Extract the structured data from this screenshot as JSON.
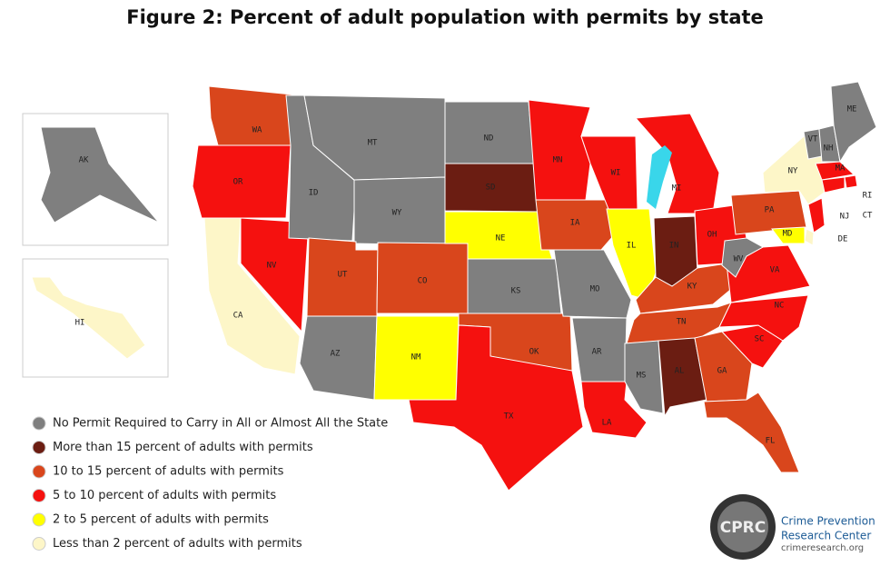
{
  "title": "Figure 2: Percent of adult population with permits by state",
  "legend": [
    {
      "label": "No Permit Required to Carry in All or Almost All the State",
      "color": "#7f7f7f"
    },
    {
      "label": "More than 15 percent of adults with permits",
      "color": "#6b1d12"
    },
    {
      "label": "10 to 15 percent of adults with permits",
      "color": "#d9461c"
    },
    {
      "label": "5 to 10 percent of adults with permits",
      "color": "#f5110f"
    },
    {
      "label": "2 to 5 percent of adults with permits",
      "color": "#ffff00"
    },
    {
      "label": "Less than 2 percent of adults with permits",
      "color": "#fdf6c8"
    }
  ],
  "states": [
    {
      "abbr": "WA",
      "category": 2
    },
    {
      "abbr": "OR",
      "category": 3
    },
    {
      "abbr": "CA",
      "category": 5
    },
    {
      "abbr": "NV",
      "category": 3
    },
    {
      "abbr": "ID",
      "category": 0
    },
    {
      "abbr": "MT",
      "category": 0
    },
    {
      "abbr": "WY",
      "category": 0
    },
    {
      "abbr": "UT",
      "category": 2
    },
    {
      "abbr": "AZ",
      "category": 0
    },
    {
      "abbr": "CO",
      "category": 2
    },
    {
      "abbr": "NM",
      "category": 4
    },
    {
      "abbr": "ND",
      "category": 0
    },
    {
      "abbr": "SD",
      "category": 1
    },
    {
      "abbr": "NE",
      "category": 4
    },
    {
      "abbr": "KS",
      "category": 0
    },
    {
      "abbr": "OK",
      "category": 2
    },
    {
      "abbr": "TX",
      "category": 3
    },
    {
      "abbr": "MN",
      "category": 3
    },
    {
      "abbr": "IA",
      "category": 2
    },
    {
      "abbr": "MO",
      "category": 0
    },
    {
      "abbr": "AR",
      "category": 0
    },
    {
      "abbr": "LA",
      "category": 3
    },
    {
      "abbr": "WI",
      "category": 3
    },
    {
      "abbr": "IL",
      "category": 4
    },
    {
      "abbr": "MI",
      "category": 3
    },
    {
      "abbr": "IN",
      "category": 1
    },
    {
      "abbr": "OH",
      "category": 3
    },
    {
      "abbr": "KY",
      "category": 2
    },
    {
      "abbr": "TN",
      "category": 2
    },
    {
      "abbr": "MS",
      "category": 0
    },
    {
      "abbr": "AL",
      "category": 1
    },
    {
      "abbr": "GA",
      "category": 2
    },
    {
      "abbr": "FL",
      "category": 2
    },
    {
      "abbr": "SC",
      "category": 3
    },
    {
      "abbr": "NC",
      "category": 3
    },
    {
      "abbr": "VA",
      "category": 3
    },
    {
      "abbr": "WV",
      "category": 0
    },
    {
      "abbr": "PA",
      "category": 2
    },
    {
      "abbr": "NY",
      "category": 5
    },
    {
      "abbr": "VT",
      "category": 0
    },
    {
      "abbr": "NH",
      "category": 0
    },
    {
      "abbr": "ME",
      "category": 0
    },
    {
      "abbr": "MA",
      "category": 3
    },
    {
      "abbr": "RI",
      "category": 3
    },
    {
      "abbr": "CT",
      "category": 3
    },
    {
      "abbr": "NJ",
      "category": 3
    },
    {
      "abbr": "DE",
      "category": 5
    },
    {
      "abbr": "MD",
      "category": 4
    },
    {
      "abbr": "AK",
      "category": 0
    },
    {
      "abbr": "HI",
      "category": 5
    }
  ],
  "logo": {
    "mark": "CPRC",
    "line1": "Crime Prevention",
    "line2": "Research Center",
    "url": "crimeresearch.org"
  }
}
